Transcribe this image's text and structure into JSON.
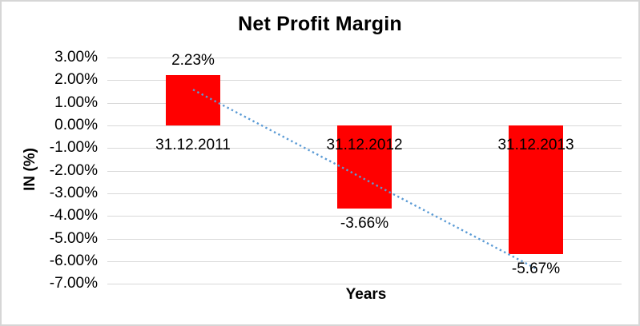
{
  "chart_data": {
    "type": "bar",
    "title": "Net Profit Margin",
    "xlabel": "Years",
    "ylabel": "IN (%)",
    "categories": [
      "31.12.2011",
      "31.12.2012",
      "31.12.2013"
    ],
    "values": [
      2.23,
      -3.66,
      -5.67
    ],
    "data_labels": [
      "2.23%",
      "-3.66%",
      "-5.67%"
    ],
    "ylim": [
      -7,
      3
    ],
    "ytick_step": 1,
    "ytick_labels": [
      "3.00%",
      "2.00%",
      "1.00%",
      "0.00%",
      "-1.00%",
      "-2.00%",
      "-3.00%",
      "-4.00%",
      "-5.00%",
      "-6.00%",
      "-7.00%"
    ],
    "grid": true,
    "legend": false,
    "bar_color": "#ff0000",
    "gridline_color": "#d9d9d9",
    "trendline": {
      "type": "linear",
      "style": "dotted",
      "color": "#5b9bd5",
      "start": {
        "category_index": 0,
        "value": 1.58
      },
      "end": {
        "category_index": 2,
        "value": -6.32
      }
    }
  }
}
